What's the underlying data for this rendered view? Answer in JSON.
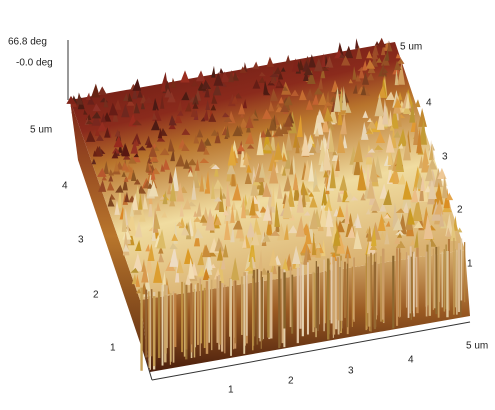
{
  "z_axis": {
    "max": "66.8 deg",
    "min": "-0.0 deg"
  },
  "left_axis": [
    "5 um",
    "4",
    "3",
    "2",
    "1"
  ],
  "bottom_axis": [
    "1",
    "2",
    "3",
    "4",
    "5 um"
  ],
  "right_axis": [
    "5 um",
    "4",
    "3",
    "2",
    "1"
  ]
}
